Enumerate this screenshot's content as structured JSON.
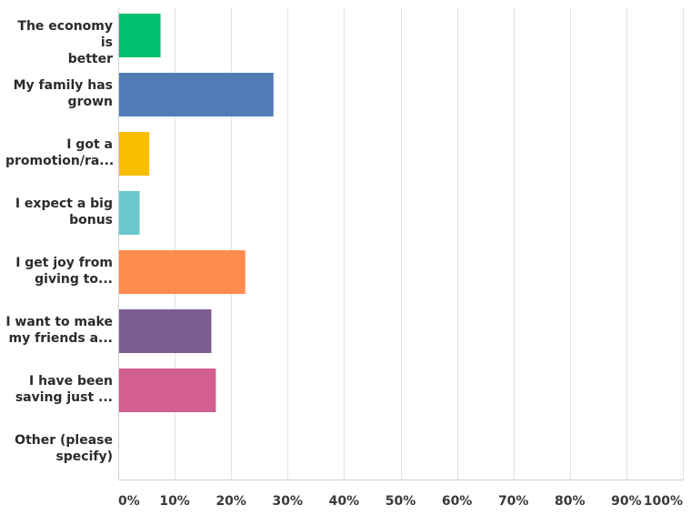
{
  "chart_data": {
    "type": "bar",
    "orientation": "horizontal",
    "categories": [
      [
        "The economy is",
        "better"
      ],
      [
        "My family has",
        "grown"
      ],
      [
        "I got a",
        "promotion/ra..."
      ],
      [
        "I expect a big",
        "bonus"
      ],
      [
        "I get joy from",
        "giving to..."
      ],
      [
        "I want to make",
        "my friends a..."
      ],
      [
        "I have been",
        "saving just ..."
      ],
      [
        "Other (please",
        "specify)"
      ]
    ],
    "values": [
      7.5,
      27.5,
      5.5,
      3.8,
      22.5,
      16.5,
      17.3,
      0
    ],
    "colors": [
      "#00bf6f",
      "#507cb6",
      "#f9be00",
      "#6bc8cd",
      "#ff8b4f",
      "#7d5e90",
      "#d25f90",
      "#999999"
    ],
    "xlim": [
      0,
      100
    ],
    "xticks": [
      "0%",
      "10%",
      "20%",
      "30%",
      "40%",
      "50%",
      "60%",
      "70%",
      "80%",
      "90%",
      "100%"
    ],
    "grid": true,
    "gridColor": "#e3e3e3"
  }
}
